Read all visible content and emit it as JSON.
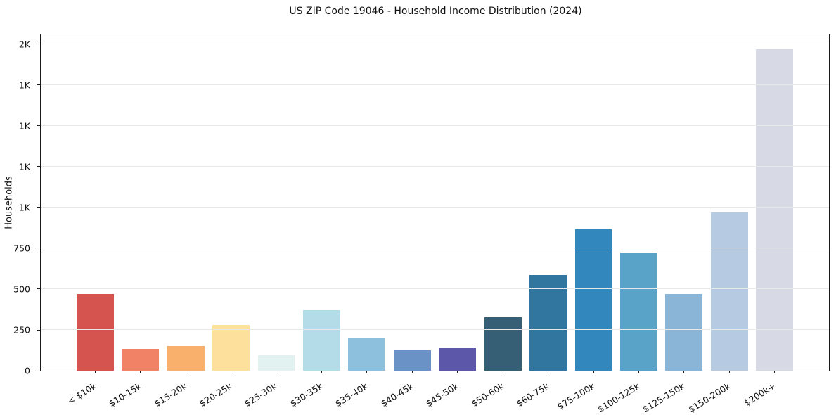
{
  "figure": {
    "title": "US ZIP Code 19046 - Household Income Distribution (2024)"
  },
  "chart_data": {
    "type": "bar",
    "title": "US ZIP Code 19046 - Household Income Distribution (2024)",
    "xlabel": "",
    "ylabel": "Households",
    "categories": [
      "< $10k",
      "$10-15k",
      "$15-20k",
      "$20-25k",
      "$25-30k",
      "$30-35k",
      "$35-40k",
      "$40-45k",
      "$45-50k",
      "$50-60k",
      "$60-75k",
      "$75-100k",
      "$100-125k",
      "$125-150k",
      "$150-200k",
      "$200k+"
    ],
    "values": [
      470,
      134,
      152,
      281,
      93,
      371,
      201,
      123,
      138,
      326,
      588,
      868,
      724,
      470,
      968,
      1970
    ],
    "bar_colors": [
      "#d5544f",
      "#f18266",
      "#f9b06c",
      "#fce09c",
      "#e2f2f1",
      "#b4dbe8",
      "#8cc0dc",
      "#6b92c6",
      "#5c57a9",
      "#365f75",
      "#30769f",
      "#3287bd",
      "#59a3c9",
      "#8bb5d7",
      "#b6cbe2",
      "#d7d9e4"
    ],
    "ylim": [
      0,
      2060
    ],
    "yticks": [
      {
        "value": 0,
        "label": "0"
      },
      {
        "value": 250,
        "label": "250"
      },
      {
        "value": 500,
        "label": "500"
      },
      {
        "value": 750,
        "label": "750"
      },
      {
        "value": 1000,
        "label": "1K"
      },
      {
        "value": 1250,
        "label": "1K"
      },
      {
        "value": 1500,
        "label": "1K"
      },
      {
        "value": 1750,
        "label": "1K"
      },
      {
        "value": 2000,
        "label": "2K"
      }
    ],
    "grid": "horizontal",
    "legend": "none",
    "colors": {
      "grid": "#e8e8e8",
      "spine": "#1a1a1a",
      "background": "#ffffff",
      "text": "#111111"
    }
  }
}
